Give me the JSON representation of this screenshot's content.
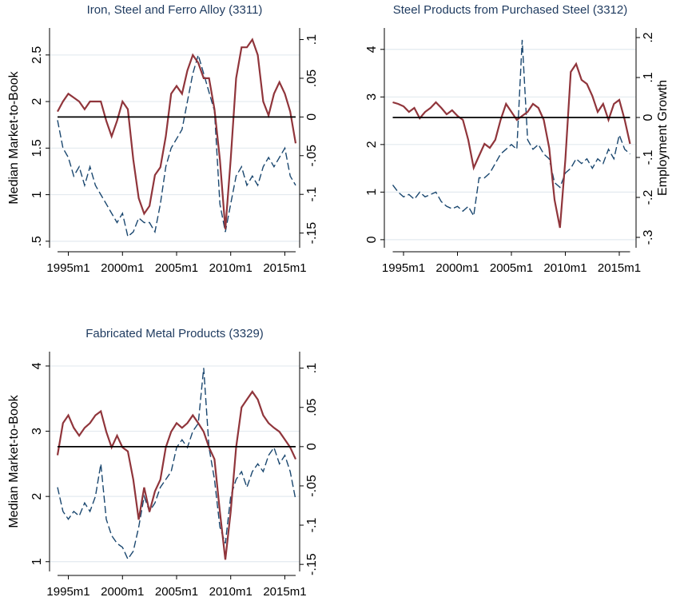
{
  "chart_data": [
    {
      "type": "line",
      "title": "Iron, Steel and Ferro Alloy (3311)",
      "ylabel": "Median Market-to-Book",
      "x": [
        "1994m1",
        "1994m7",
        "1995m1",
        "1995m7",
        "1996m1",
        "1996m7",
        "1997m1",
        "1997m7",
        "1998m1",
        "1998m7",
        "1999m1",
        "1999m7",
        "2000m1",
        "2000m7",
        "2001m1",
        "2001m7",
        "2002m1",
        "2002m7",
        "2003m1",
        "2003m7",
        "2004m1",
        "2004m7",
        "2005m1",
        "2005m7",
        "2006m1",
        "2006m7",
        "2007m1",
        "2007m7",
        "2008m1",
        "2008m7",
        "2009m1",
        "2009m7",
        "2010m1",
        "2010m7",
        "2011m1",
        "2011m7",
        "2012m1",
        "2012m7",
        "2013m1",
        "2013m7",
        "2014m1",
        "2014m7",
        "2015m1",
        "2015m7",
        "2016m1"
      ],
      "xlim": [
        "1994m1",
        "2016m1"
      ],
      "xticks": [
        "1995m1",
        "2000m1",
        "2005m1",
        "2010m1",
        "2015m1"
      ],
      "ylim": [
        0.43,
        2.79
      ],
      "yticks": [
        {
          "value": 0.5,
          "label": ".5"
        },
        1,
        1.5,
        2,
        2.5
      ],
      "y2lim": [
        -0.169,
        0.115
      ],
      "y2ticks": [
        {
          "value": -0.15,
          "label": "-.15"
        },
        {
          "value": -0.1,
          "label": "-.1"
        },
        {
          "value": -0.05,
          "label": "-.05"
        },
        0,
        {
          "value": 0.05,
          "label": ".05"
        },
        {
          "value": 0.1,
          "label": ".1"
        }
      ],
      "y2_refline": 0,
      "grid": true,
      "series": [
        {
          "color": "#1a476f",
          "dashed": true,
          "axis": "y",
          "values": [
            1.8,
            1.5,
            1.4,
            1.2,
            1.3,
            1.1,
            1.3,
            1.1,
            1.0,
            0.9,
            0.8,
            0.7,
            0.8,
            0.55,
            0.6,
            0.75,
            0.7,
            0.7,
            0.6,
            0.9,
            1.3,
            1.5,
            1.6,
            1.7,
            2.0,
            2.3,
            2.5,
            2.3,
            2.1,
            1.9,
            0.9,
            0.6,
            0.9,
            1.2,
            1.3,
            1.1,
            1.2,
            1.1,
            1.3,
            1.4,
            1.3,
            1.4,
            1.5,
            1.2,
            1.1
          ]
        },
        {
          "color": "#90353b",
          "dashed": false,
          "axis": "y2",
          "values": [
            0.007,
            0.02,
            0.03,
            0.025,
            0.02,
            0.01,
            0.02,
            0.02,
            0.02,
            -0.005,
            -0.025,
            -0.005,
            0.02,
            0.01,
            -0.055,
            -0.105,
            -0.125,
            -0.115,
            -0.075,
            -0.065,
            -0.025,
            0.03,
            0.04,
            0.03,
            0.06,
            0.08,
            0.07,
            0.05,
            0.05,
            0.01,
            -0.055,
            -0.145,
            -0.055,
            0.05,
            0.09,
            0.09,
            0.1,
            0.08,
            0.02,
            0.002,
            0.03,
            0.045,
            0.03,
            0.007,
            -0.034
          ]
        }
      ]
    },
    {
      "type": "line",
      "title": "Steel Products from Purchased Steel (3312)",
      "y2label": "Employment Growth",
      "x": [
        "1994m1",
        "1994m7",
        "1995m1",
        "1995m7",
        "1996m1",
        "1996m7",
        "1997m1",
        "1997m7",
        "1998m1",
        "1998m7",
        "1999m1",
        "1999m7",
        "2000m1",
        "2000m7",
        "2001m1",
        "2001m7",
        "2002m1",
        "2002m7",
        "2003m1",
        "2003m7",
        "2004m1",
        "2004m7",
        "2005m1",
        "2005m7",
        "2006m1",
        "2006m7",
        "2007m1",
        "2007m7",
        "2008m1",
        "2008m7",
        "2009m1",
        "2009m7",
        "2010m1",
        "2010m7",
        "2011m1",
        "2011m7",
        "2012m1",
        "2012m7",
        "2013m1",
        "2013m7",
        "2014m1",
        "2014m7",
        "2015m1",
        "2015m7",
        "2016m1"
      ],
      "xlim": [
        "1994m1",
        "2016m1"
      ],
      "xticks": [
        "1995m1",
        "2000m1",
        "2005m1",
        "2010m1",
        "2015m1"
      ],
      "ylim": [
        -0.17,
        4.45
      ],
      "yticks": [
        0,
        1,
        2,
        3,
        4
      ],
      "y2lim": [
        -0.326,
        0.224
      ],
      "y2ticks": [
        {
          "value": -0.3,
          "label": "-.3"
        },
        {
          "value": -0.2,
          "label": "-.2"
        },
        {
          "value": -0.1,
          "label": "-.1"
        },
        0,
        {
          "value": 0.1,
          "label": ".1"
        },
        {
          "value": 0.2,
          "label": ".2"
        }
      ],
      "y2_refline": 0,
      "grid": true,
      "series": [
        {
          "color": "#1a476f",
          "dashed": true,
          "axis": "y",
          "values": [
            1.15,
            1.0,
            0.9,
            0.95,
            0.85,
            1.0,
            0.9,
            0.95,
            1.0,
            0.8,
            0.7,
            0.65,
            0.7,
            0.6,
            0.7,
            0.5,
            1.3,
            1.3,
            1.4,
            1.6,
            1.8,
            1.9,
            2.0,
            1.9,
            4.2,
            2.1,
            1.9,
            2.0,
            1.8,
            1.7,
            1.2,
            1.1,
            1.4,
            1.5,
            1.7,
            1.6,
            1.7,
            1.5,
            1.7,
            1.6,
            1.9,
            1.7,
            2.2,
            1.9,
            1.8
          ]
        },
        {
          "color": "#90353b",
          "dashed": false,
          "axis": "y2",
          "values": [
            0.038,
            0.034,
            0.028,
            0.014,
            0.024,
            -0.002,
            0.014,
            0.024,
            0.038,
            0.024,
            0.008,
            0.018,
            0.004,
            -0.006,
            -0.056,
            -0.126,
            -0.096,
            -0.066,
            -0.076,
            -0.056,
            -0.006,
            0.034,
            0.014,
            -0.006,
            0.004,
            0.014,
            0.034,
            0.024,
            -0.006,
            -0.076,
            -0.206,
            -0.276,
            -0.106,
            0.114,
            0.134,
            0.094,
            0.084,
            0.054,
            0.014,
            0.034,
            -0.006,
            0.034,
            0.044,
            -0.006,
            -0.066
          ]
        }
      ]
    },
    {
      "type": "line",
      "title": "Fabricated Metal Products (3329)",
      "ylabel": "Median Market-to-Book",
      "x": [
        "1994m1",
        "1994m7",
        "1995m1",
        "1995m7",
        "1996m1",
        "1996m7",
        "1997m1",
        "1997m7",
        "1998m1",
        "1998m7",
        "1999m1",
        "1999m7",
        "2000m1",
        "2000m7",
        "2001m1",
        "2001m7",
        "2002m1",
        "2002m7",
        "2003m1",
        "2003m7",
        "2004m1",
        "2004m7",
        "2005m1",
        "2005m7",
        "2006m1",
        "2006m7",
        "2007m1",
        "2007m7",
        "2008m1",
        "2008m7",
        "2009m1",
        "2009m7",
        "2010m1",
        "2010m7",
        "2011m1",
        "2011m7",
        "2012m1",
        "2012m7",
        "2013m1",
        "2013m7",
        "2014m1",
        "2014m7",
        "2015m1",
        "2015m7",
        "2016m1"
      ],
      "xlim": [
        "1994m1",
        "2016m1"
      ],
      "xticks": [
        "1995m1",
        "2000m1",
        "2005m1",
        "2010m1",
        "2015m1"
      ],
      "ylim": [
        0.85,
        4.22
      ],
      "yticks": [
        1,
        2,
        3,
        4
      ],
      "y2lim": [
        -0.159,
        0.121
      ],
      "y2ticks": [
        {
          "value": -0.15,
          "label": "-.15"
        },
        {
          "value": -0.1,
          "label": "-.1"
        },
        {
          "value": -0.05,
          "label": "-.05"
        },
        0,
        {
          "value": 0.05,
          "label": ".05"
        },
        {
          "value": 0.1,
          "label": ".1"
        }
      ],
      "y2_refline": 0,
      "grid": true,
      "series": [
        {
          "color": "#1a476f",
          "dashed": true,
          "axis": "y",
          "values": [
            2.14,
            1.77,
            1.65,
            1.77,
            1.7,
            1.9,
            1.77,
            2.0,
            2.5,
            1.65,
            1.4,
            1.28,
            1.22,
            1.04,
            1.16,
            1.53,
            2.0,
            1.77,
            1.9,
            2.14,
            2.26,
            2.38,
            2.75,
            2.87,
            2.75,
            3.0,
            3.12,
            3.97,
            2.75,
            2.26,
            1.53,
            1.28,
            2.0,
            2.26,
            2.38,
            2.14,
            2.38,
            2.5,
            2.38,
            2.63,
            2.75,
            2.5,
            2.63,
            2.38,
            1.95
          ]
        },
        {
          "color": "#90353b",
          "dashed": false,
          "axis": "y2",
          "values": [
            -0.011,
            0.03,
            0.04,
            0.024,
            0.014,
            0.024,
            0.03,
            0.04,
            0.045,
            0.019,
            -0.001,
            0.014,
            -0.001,
            -0.006,
            -0.042,
            -0.093,
            -0.052,
            -0.083,
            -0.057,
            -0.042,
            -0.001,
            0.019,
            0.03,
            0.024,
            0.03,
            0.04,
            0.03,
            0.019,
            -0.001,
            -0.016,
            -0.083,
            -0.144,
            -0.083,
            -0.001,
            0.05,
            0.06,
            0.07,
            0.06,
            0.04,
            0.03,
            0.024,
            0.019,
            0.009,
            -0.001,
            -0.016
          ]
        }
      ]
    }
  ]
}
